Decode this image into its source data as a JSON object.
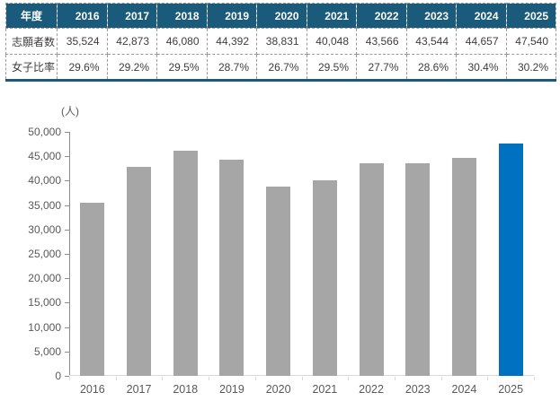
{
  "table": {
    "corner_label": "年度",
    "years": [
      "2016",
      "2017",
      "2018",
      "2019",
      "2020",
      "2021",
      "2022",
      "2023",
      "2024",
      "2025"
    ],
    "rows": [
      {
        "label": "志願者数",
        "values": [
          "35,524",
          "42,873",
          "46,080",
          "44,392",
          "38,831",
          "40,048",
          "43,566",
          "43,544",
          "44,657",
          "47,540"
        ]
      },
      {
        "label": "女子比率",
        "values": [
          "29.6%",
          "29.2%",
          "29.5%",
          "28.7%",
          "26.7%",
          "29.5%",
          "27.7%",
          "28.6%",
          "30.4%",
          "30.2%"
        ]
      }
    ]
  },
  "chart_data": {
    "type": "bar",
    "title": "",
    "unit_label": "(人)",
    "categories": [
      "2016",
      "2017",
      "2018",
      "2019",
      "2020",
      "2021",
      "2022",
      "2023",
      "2024",
      "2025"
    ],
    "values": [
      35524,
      42873,
      46080,
      44392,
      38831,
      40048,
      43566,
      43544,
      44657,
      47540
    ],
    "ylim": [
      0,
      50000
    ],
    "ytick_interval": 5000,
    "grid": false,
    "legend": "none",
    "highlight_index": 9
  },
  "colors": {
    "header_bg": "#1a5a7b",
    "header_text": "#ffffff",
    "table_border_dashed": "#9a9a9a",
    "table_bottom_border": "#1a5a7b",
    "bar_gray": "#a6a6a6",
    "bar_highlight_blue": "#0070c0",
    "axis_text": "#595959"
  }
}
